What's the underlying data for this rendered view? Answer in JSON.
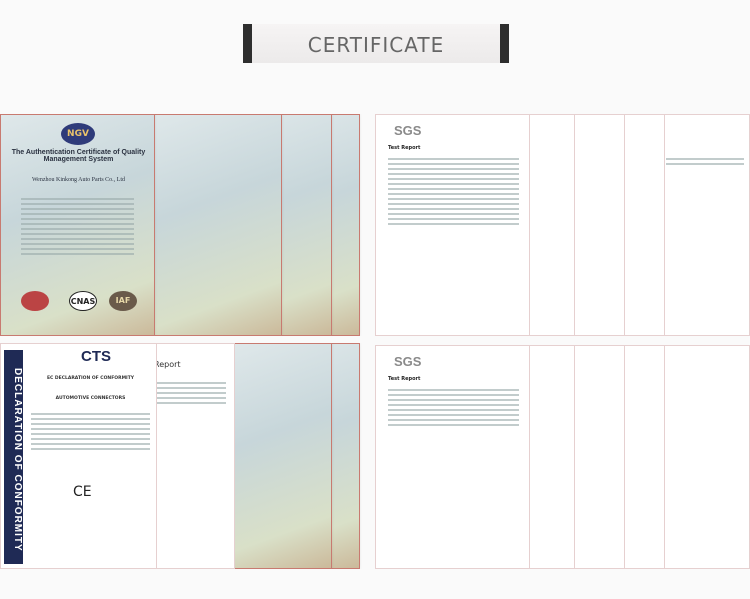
{
  "header": {
    "title": "CERTIFICATE"
  },
  "ngv": {
    "logo": "NGV",
    "title": "The Authentication Certificate of Quality Management System",
    "company": "Wenzhou Kinkong Auto Parts Co., Ltd",
    "seal1": "CNAS",
    "seal2": "IAF"
  },
  "sgs": {
    "logo": "SGS",
    "report": "Test Report"
  },
  "cts": {
    "logo": "CTS",
    "side": "DECLARATION OF CONFORMITY",
    "heading": "EC DECLARATION OF CONFORMITY",
    "product": "AUTOMOTIVE CONNECTORS",
    "mark": "CE",
    "report": "Report"
  }
}
